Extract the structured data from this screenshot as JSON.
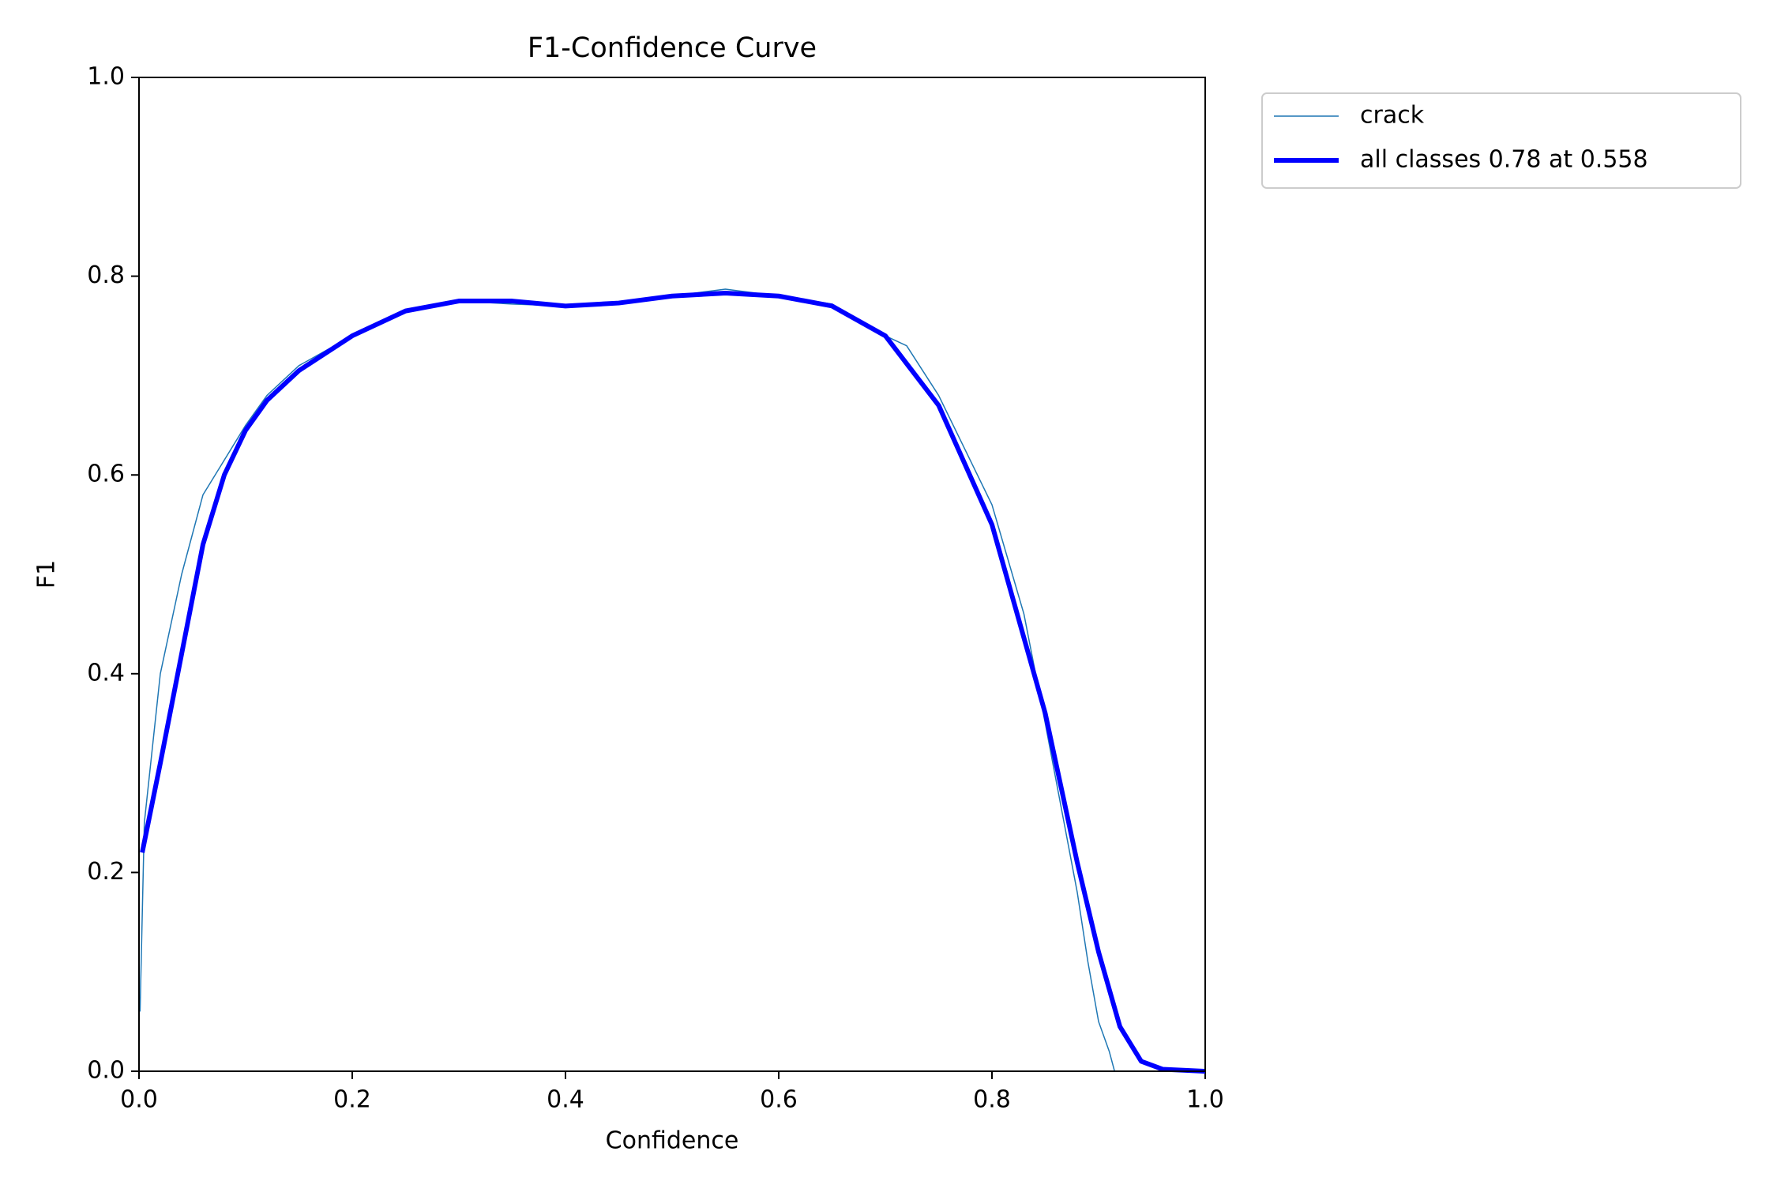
{
  "chart_data": {
    "type": "line",
    "title": "F1-Confidence Curve",
    "x_label": "Confidence",
    "y_label": "F1",
    "xlim": [
      0,
      1
    ],
    "ylim": [
      0,
      1
    ],
    "xticks": [
      {
        "value": 0,
        "label": "0.0"
      },
      0.2,
      0.4,
      0.6,
      0.8,
      {
        "value": 1,
        "label": "1.0"
      }
    ],
    "yticks": [
      {
        "value": 0,
        "label": "0.0"
      },
      0.2,
      0.4,
      0.6,
      0.8,
      {
        "value": 1,
        "label": "1.0"
      }
    ],
    "legend": "outside-upper-right",
    "series": [
      {
        "name": "crack",
        "color": "#1f77b4",
        "width": 1.5,
        "x": [
          0.001,
          0.005,
          0.02,
          0.04,
          0.06,
          0.08,
          0.1,
          0.12,
          0.15,
          0.2,
          0.25,
          0.3,
          0.35,
          0.4,
          0.45,
          0.5,
          0.55,
          0.6,
          0.65,
          0.7,
          0.72,
          0.75,
          0.8,
          0.83,
          0.85,
          0.88,
          0.89,
          0.9,
          0.91,
          0.915,
          1.0
        ],
        "values": [
          0.06,
          0.25,
          0.4,
          0.5,
          0.58,
          0.615,
          0.65,
          0.68,
          0.71,
          0.74,
          0.765,
          0.775,
          0.772,
          0.77,
          0.772,
          0.78,
          0.787,
          0.78,
          0.772,
          0.74,
          0.73,
          0.68,
          0.57,
          0.46,
          0.35,
          0.18,
          0.11,
          0.05,
          0.02,
          0.0,
          0.0
        ]
      },
      {
        "name": "all classes 0.78 at 0.558",
        "color": "#0000ff",
        "width": 6,
        "x": [
          0.003,
          0.02,
          0.04,
          0.06,
          0.08,
          0.1,
          0.12,
          0.15,
          0.2,
          0.25,
          0.3,
          0.35,
          0.4,
          0.45,
          0.5,
          0.55,
          0.6,
          0.65,
          0.7,
          0.75,
          0.8,
          0.85,
          0.88,
          0.9,
          0.92,
          0.94,
          0.96,
          1.0
        ],
        "values": [
          0.22,
          0.31,
          0.42,
          0.53,
          0.6,
          0.645,
          0.675,
          0.705,
          0.74,
          0.765,
          0.775,
          0.775,
          0.77,
          0.773,
          0.78,
          0.783,
          0.78,
          0.77,
          0.74,
          0.67,
          0.55,
          0.36,
          0.21,
          0.12,
          0.045,
          0.01,
          0.002,
          0.0
        ]
      }
    ]
  }
}
